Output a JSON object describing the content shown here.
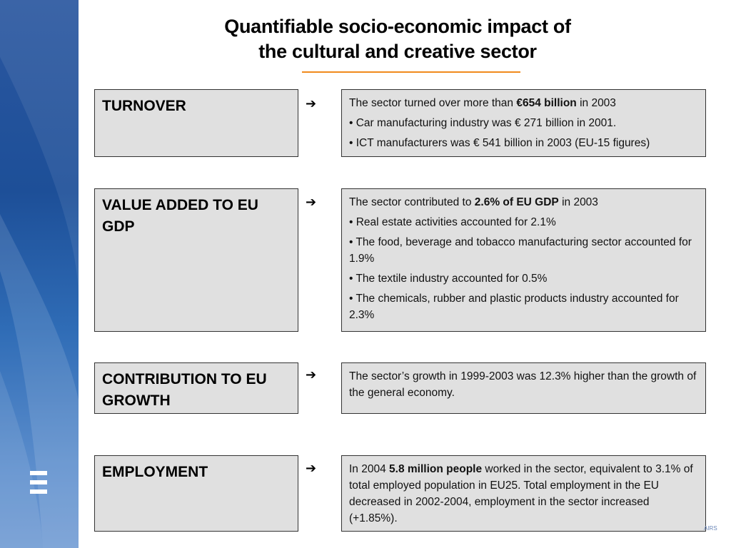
{
  "title": {
    "line1": "Quantifiable socio-economic impact of",
    "line2": "the cultural and creative sector"
  },
  "arrow_glyph": "➔",
  "corner_text": "AIRS",
  "rows": [
    {
      "label": "TURNOVER",
      "lines": [
        {
          "pre": "The sector turned over more than ",
          "bold": "€654 billion",
          "post": " in 2003"
        },
        {
          "pre": "• Car manufacturing industry was € 271 billion in 2001.",
          "bold": "",
          "post": ""
        },
        {
          "pre": "• ICT manufacturers was € 541 billion in 2003 (EU-15 figures)",
          "bold": "",
          "post": ""
        }
      ]
    },
    {
      "label": "VALUE ADDED TO EU GDP",
      "lines": [
        {
          "pre": "The sector contributed to ",
          "bold": "2.6% of EU GDP",
          "post": " in 2003"
        },
        {
          "pre": "• Real estate activities accounted for 2.1%",
          "bold": "",
          "post": ""
        },
        {
          "pre": "•  The food, beverage and tobacco manufacturing sector accounted for 1.9%",
          "bold": "",
          "post": ""
        },
        {
          "pre": "• The textile industry accounted for 0.5%",
          "bold": "",
          "post": ""
        },
        {
          "pre": "•  The chemicals, rubber and plastic products industry accounted for 2.3%",
          "bold": "",
          "post": ""
        }
      ]
    },
    {
      "label": "CONTRIBUTION TO EU GROWTH",
      "lines": [
        {
          "pre": "The sector’s growth in 1999-2003 was 12.3% higher than the growth of the general economy.",
          "bold": "",
          "post": ""
        }
      ]
    },
    {
      "label": "EMPLOYMENT",
      "lines": [
        {
          "pre": "In 2004 ",
          "bold": "5.8 million people",
          "post": " worked in the sector, equivalent to 3.1% of total employed population in EU25. Total employment in the EU decreased in 2002-2004, employment in the sector increased (+1.85%)."
        }
      ]
    }
  ]
}
